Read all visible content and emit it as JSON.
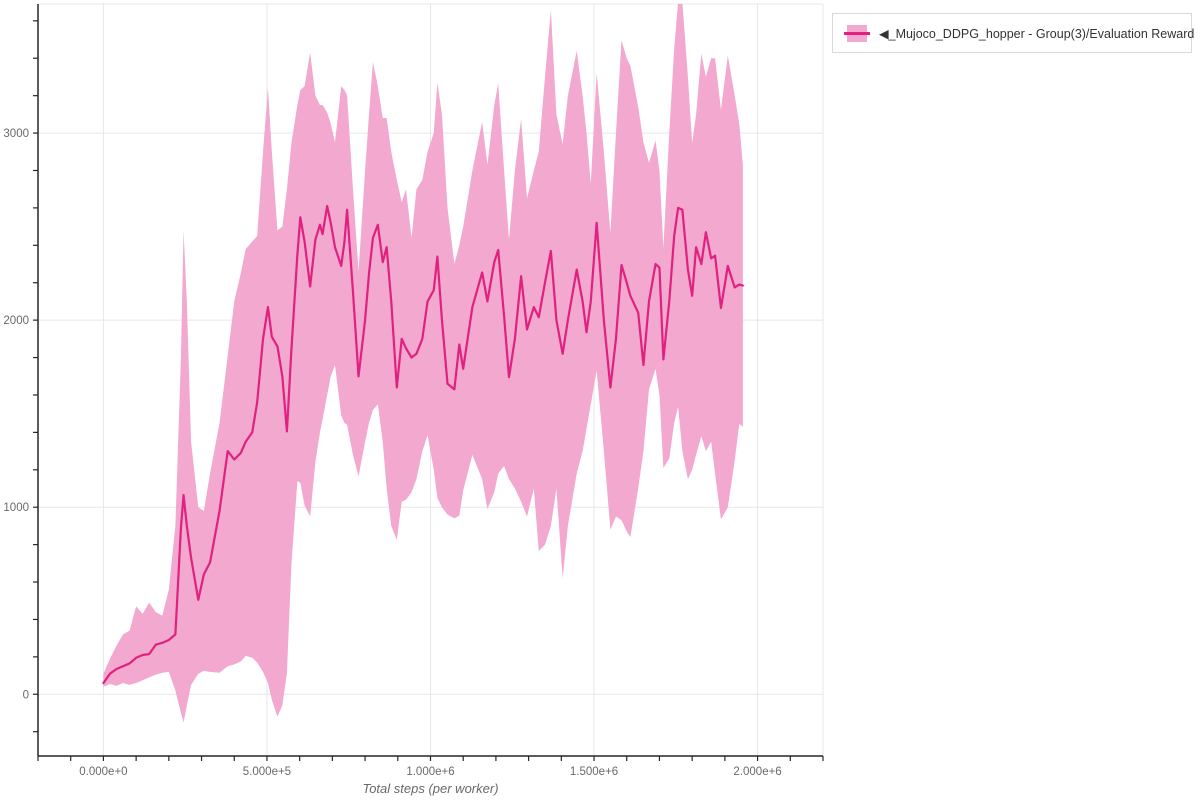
{
  "chart_data": {
    "type": "line",
    "title": "",
    "legend_label": "◀_Mujoco_DDPG_hopper - Group(3)/Evaluation Reward",
    "xlabel": "Total steps (per worker)",
    "ylabel": "",
    "legend_position": "top-right-outside",
    "grid": true,
    "x_range": [
      -200000,
      2200000
    ],
    "y_range": [
      -330,
      3690
    ],
    "x_minor_step": 100000,
    "y_minor_step": 200,
    "x_ticks": [
      {
        "value": 0,
        "label": "0.000e+0"
      },
      {
        "value": 500000,
        "label": "5.000e+5"
      },
      {
        "value": 1000000,
        "label": "1.000e+6"
      },
      {
        "value": 1500000,
        "label": "1.500e+6"
      },
      {
        "value": 2000000,
        "label": "2.000e+6"
      }
    ],
    "y_ticks": [
      {
        "value": 0,
        "label": "0"
      },
      {
        "value": 1000,
        "label": "1000"
      },
      {
        "value": 2000,
        "label": "2000"
      },
      {
        "value": 3000,
        "label": "3000"
      }
    ],
    "colors": {
      "line": "#e0217f",
      "band": "#f2a8cf",
      "grid": "#e7e7e7",
      "border": "#e7e7e7",
      "axis": "#262626",
      "tick_label": "#696969",
      "axis_title": "#696969",
      "legend_border": "#d9d9d9",
      "legend_text": "#333333"
    },
    "points_format": [
      "step",
      "mean",
      "lower",
      "upper"
    ],
    "points": [
      [
        0,
        60,
        40,
        110
      ],
      [
        20000,
        110,
        55,
        190
      ],
      [
        40000,
        135,
        45,
        260
      ],
      [
        60000,
        150,
        60,
        320
      ],
      [
        80000,
        165,
        50,
        340
      ],
      [
        100000,
        195,
        60,
        470
      ],
      [
        120000,
        210,
        75,
        430
      ],
      [
        140000,
        215,
        90,
        490
      ],
      [
        160000,
        265,
        105,
        440
      ],
      [
        180000,
        275,
        115,
        420
      ],
      [
        200000,
        290,
        120,
        560
      ],
      [
        220000,
        320,
        20,
        900
      ],
      [
        237000,
        890,
        -100,
        1800
      ],
      [
        245000,
        1065,
        -150,
        2480
      ],
      [
        255000,
        900,
        -60,
        2100
      ],
      [
        268000,
        730,
        50,
        1350
      ],
      [
        290000,
        505,
        110,
        1000
      ],
      [
        307000,
        640,
        125,
        980
      ],
      [
        326000,
        705,
        120,
        1180
      ],
      [
        355000,
        980,
        115,
        1450
      ],
      [
        380000,
        1300,
        150,
        1810
      ],
      [
        400000,
        1255,
        160,
        2100
      ],
      [
        420000,
        1290,
        175,
        2250
      ],
      [
        435000,
        1350,
        205,
        2380
      ],
      [
        455000,
        1400,
        195,
        2420
      ],
      [
        470000,
        1560,
        170,
        2450
      ],
      [
        488000,
        1900,
        120,
        2900
      ],
      [
        503000,
        2070,
        60,
        3240
      ],
      [
        515000,
        1910,
        -30,
        2900
      ],
      [
        532000,
        1860,
        -120,
        2480
      ],
      [
        547000,
        1700,
        -60,
        2500
      ],
      [
        561000,
        1405,
        115,
        2700
      ],
      [
        575000,
        1850,
        700,
        2950
      ],
      [
        593000,
        2350,
        1140,
        3150
      ],
      [
        602000,
        2550,
        1130,
        3230
      ],
      [
        615000,
        2420,
        1010,
        3250
      ],
      [
        632000,
        2180,
        950,
        3430
      ],
      [
        648000,
        2430,
        1240,
        3200
      ],
      [
        662000,
        2510,
        1400,
        3150
      ],
      [
        670000,
        2460,
        1470,
        3150
      ],
      [
        684000,
        2610,
        1600,
        3110
      ],
      [
        695000,
        2520,
        1700,
        3050
      ],
      [
        708000,
        2390,
        1760,
        2950
      ],
      [
        727000,
        2290,
        1490,
        3250
      ],
      [
        737000,
        2420,
        1450,
        3230
      ],
      [
        745000,
        2590,
        1440,
        3200
      ],
      [
        763000,
        2150,
        1280,
        2700
      ],
      [
        780000,
        1700,
        1165,
        2260
      ],
      [
        800000,
        2000,
        1350,
        2800
      ],
      [
        812000,
        2250,
        1450,
        3100
      ],
      [
        824000,
        2440,
        1520,
        3380
      ],
      [
        839000,
        2510,
        1550,
        3250
      ],
      [
        854000,
        2310,
        1350,
        3080
      ],
      [
        866000,
        2390,
        1100,
        3080
      ],
      [
        880000,
        2100,
        900,
        2900
      ],
      [
        897000,
        1640,
        825,
        2750
      ],
      [
        912000,
        1900,
        1030,
        2630
      ],
      [
        925000,
        1850,
        1040,
        2700
      ],
      [
        942000,
        1800,
        1080,
        2440
      ],
      [
        957000,
        1820,
        1150,
        2700
      ],
      [
        975000,
        1900,
        1300,
        2750
      ],
      [
        991000,
        2100,
        1385,
        2900
      ],
      [
        1010000,
        2160,
        1200,
        3000
      ],
      [
        1021000,
        2340,
        1050,
        3270
      ],
      [
        1035000,
        2000,
        1000,
        3100
      ],
      [
        1052000,
        1660,
        960,
        2600
      ],
      [
        1073000,
        1630,
        940,
        2300
      ],
      [
        1088000,
        1870,
        955,
        2400
      ],
      [
        1100000,
        1740,
        1090,
        2500
      ],
      [
        1128000,
        2070,
        1280,
        2800
      ],
      [
        1158000,
        2255,
        1150,
        3060
      ],
      [
        1174000,
        2100,
        990,
        2830
      ],
      [
        1195000,
        2310,
        1080,
        3150
      ],
      [
        1207000,
        2375,
        1180,
        3265
      ],
      [
        1225000,
        2020,
        1220,
        2800
      ],
      [
        1240000,
        1695,
        1150,
        2430
      ],
      [
        1258000,
        1900,
        1100,
        2800
      ],
      [
        1277000,
        2235,
        1030,
        3075
      ],
      [
        1295000,
        1950,
        950,
        2650
      ],
      [
        1316000,
        2070,
        1100,
        2800
      ],
      [
        1331000,
        2015,
        765,
        2900
      ],
      [
        1350000,
        2200,
        800,
        3300
      ],
      [
        1368000,
        2370,
        900,
        3660
      ],
      [
        1385000,
        2000,
        1100,
        3100
      ],
      [
        1404000,
        1820,
        620,
        2940
      ],
      [
        1420000,
        2000,
        900,
        3200
      ],
      [
        1447000,
        2270,
        1180,
        3440
      ],
      [
        1465000,
        2100,
        1300,
        3200
      ],
      [
        1477000,
        1935,
        1420,
        3000
      ],
      [
        1490000,
        2100,
        1550,
        2730
      ],
      [
        1508000,
        2520,
        1730,
        3320
      ],
      [
        1530000,
        2000,
        1300,
        2900
      ],
      [
        1550000,
        1640,
        880,
        2465
      ],
      [
        1567000,
        1900,
        950,
        3000
      ],
      [
        1584000,
        2295,
        930,
        3495
      ],
      [
        1600000,
        2200,
        870,
        3400
      ],
      [
        1611000,
        2130,
        840,
        3360
      ],
      [
        1635000,
        2040,
        1100,
        3140
      ],
      [
        1651000,
        1760,
        1300,
        2950
      ],
      [
        1668000,
        2100,
        1630,
        2840
      ],
      [
        1688000,
        2300,
        1740,
        2960
      ],
      [
        1700000,
        2280,
        1600,
        2800
      ],
      [
        1712000,
        1790,
        1210,
        2385
      ],
      [
        1730000,
        2100,
        1260,
        3000
      ],
      [
        1745000,
        2450,
        1450,
        3450
      ],
      [
        1757000,
        2600,
        1537,
        3700
      ],
      [
        1770000,
        2590,
        1300,
        3700
      ],
      [
        1787000,
        2270,
        1150,
        3300
      ],
      [
        1800000,
        2130,
        1200,
        2945
      ],
      [
        1812000,
        2390,
        1280,
        3100
      ],
      [
        1828000,
        2300,
        1380,
        3425
      ],
      [
        1842000,
        2470,
        1300,
        3300
      ],
      [
        1858000,
        2330,
        1350,
        3400
      ],
      [
        1870000,
        2345,
        1180,
        3400
      ],
      [
        1888000,
        2065,
        935,
        3125
      ],
      [
        1909000,
        2290,
        1000,
        3415
      ],
      [
        1930000,
        2175,
        1250,
        3200
      ],
      [
        1944000,
        2190,
        1445,
        3050
      ],
      [
        1955000,
        2185,
        1430,
        2830
      ]
    ]
  }
}
